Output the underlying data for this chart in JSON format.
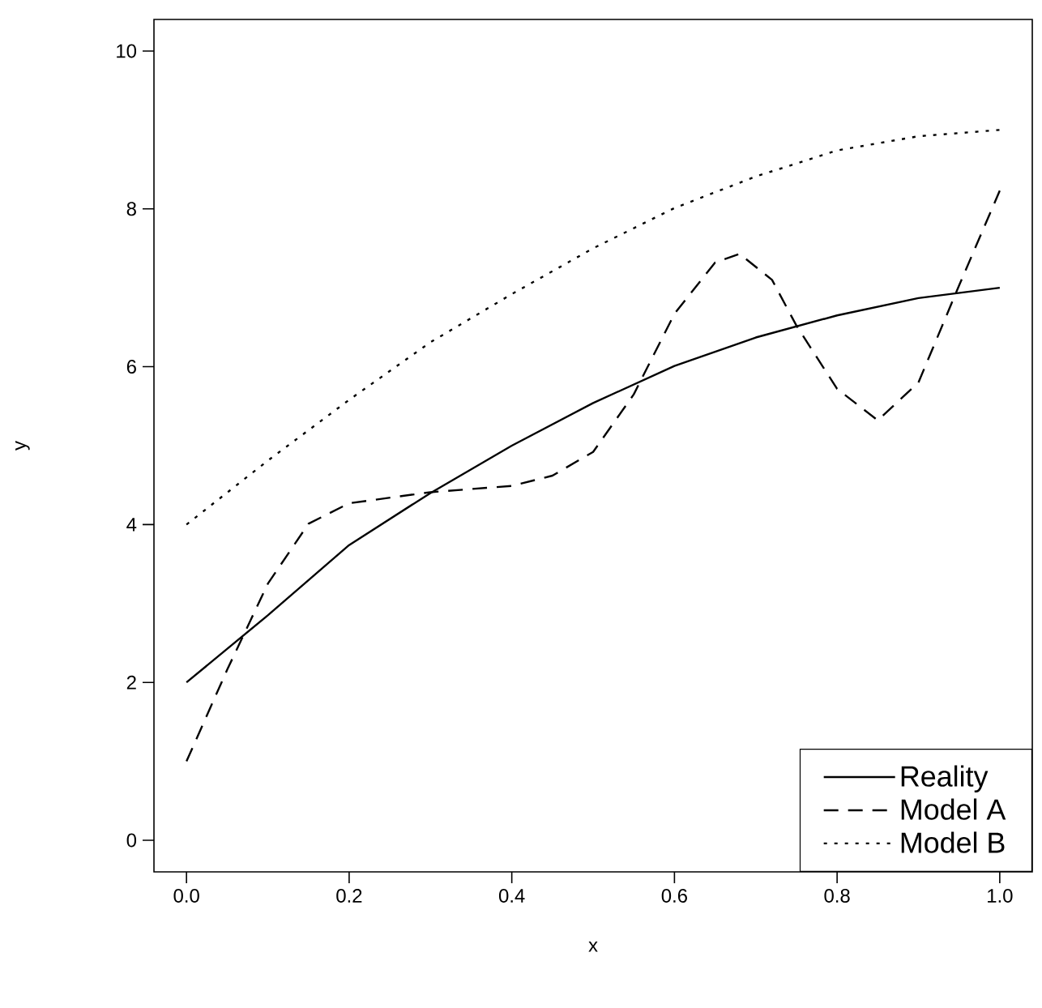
{
  "chart_data": {
    "type": "line",
    "xlabel": "x",
    "ylabel": "y",
    "xlim": [
      -0.04,
      1.04
    ],
    "ylim": [
      -0.4,
      10.4
    ],
    "xticks": [
      {
        "value": 0,
        "label": "0.0"
      },
      {
        "value": 0.2,
        "label": "0.2"
      },
      {
        "value": 0.4,
        "label": "0.4"
      },
      {
        "value": 0.6,
        "label": "0.6"
      },
      {
        "value": 0.8,
        "label": "0.8"
      },
      {
        "value": 1,
        "label": "1.0"
      }
    ],
    "yticks": [
      0,
      2,
      4,
      6,
      8,
      10
    ],
    "legend": "bottom right",
    "marker": "none",
    "series": [
      {
        "name": "Reality",
        "color": "#000000",
        "line_style": "solid",
        "x": [
          0,
          0.1,
          0.2,
          0.3,
          0.4,
          0.5,
          0.6,
          0.7,
          0.8,
          0.9,
          1.0
        ],
        "values": [
          2.0,
          2.85,
          3.74,
          4.4,
          5.0,
          5.54,
          6.01,
          6.37,
          6.65,
          6.87,
          7.0
        ]
      },
      {
        "name": "Model A",
        "color": "#000000",
        "line_style": "dashed",
        "x": [
          0,
          0.05,
          0.1,
          0.15,
          0.2,
          0.3,
          0.4,
          0.45,
          0.5,
          0.55,
          0.6,
          0.65,
          0.68,
          0.72,
          0.75,
          0.8,
          0.85,
          0.9,
          0.95,
          1.0
        ],
        "values": [
          1.0,
          2.16,
          3.25,
          4.01,
          4.27,
          4.41,
          4.49,
          4.62,
          4.92,
          5.65,
          6.67,
          7.32,
          7.43,
          7.1,
          6.52,
          5.72,
          5.32,
          5.8,
          7.03,
          8.23
        ]
      },
      {
        "name": "Model B",
        "color": "#000000",
        "line_style": "dotted",
        "x": [
          0,
          0.1,
          0.2,
          0.3,
          0.4,
          0.5,
          0.6,
          0.7,
          0.8,
          0.9,
          1.0
        ],
        "values": [
          4.0,
          4.81,
          5.58,
          6.31,
          6.92,
          7.5,
          8.01,
          8.41,
          8.74,
          8.92,
          9.0
        ]
      }
    ]
  }
}
